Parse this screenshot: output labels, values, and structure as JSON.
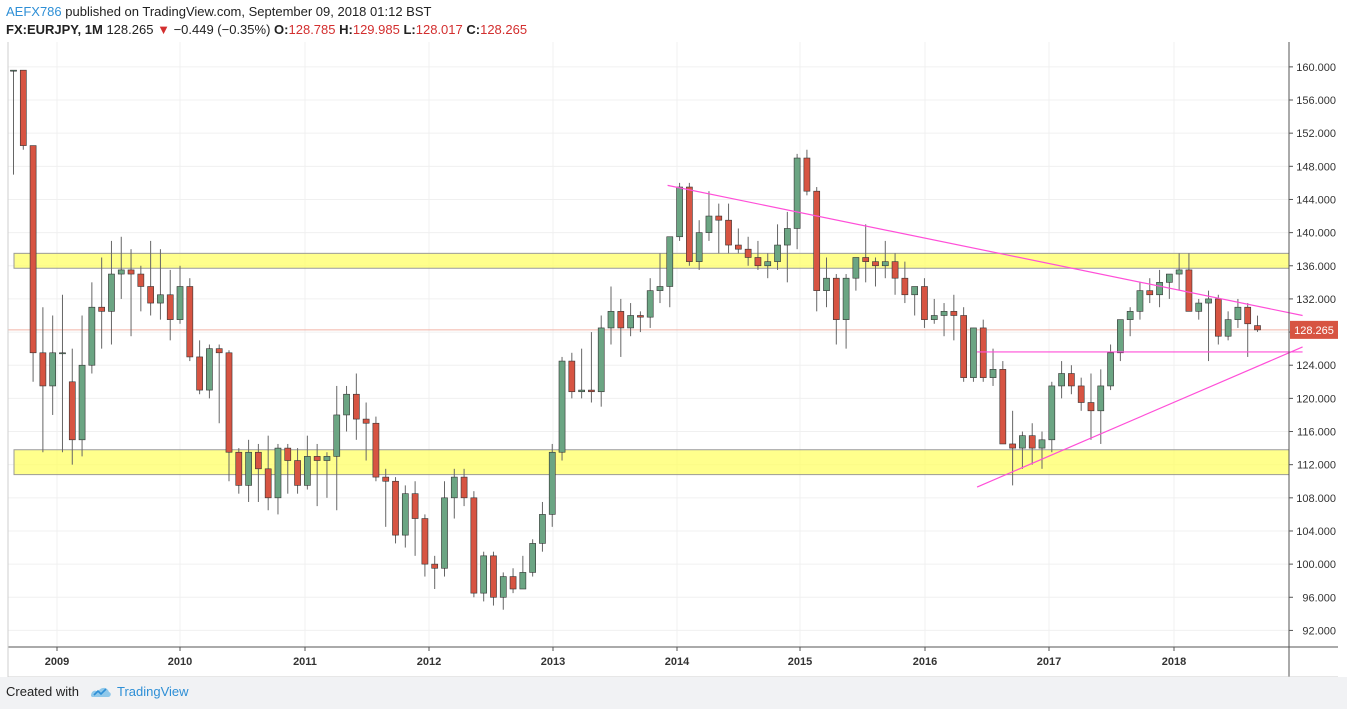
{
  "header": {
    "username": "AEFX786",
    "published_text": "published on TradingView.com, September 09, 2018 01:12 BST",
    "symbol": "FX:EURJPY, 1M",
    "last": "128.265",
    "change_arrow": "▼",
    "change": "−0.449 (−0.35%)",
    "o_label": "O:",
    "o_val": "128.785",
    "h_label": "H:",
    "h_val": "129.985",
    "l_label": "L:",
    "l_val": "128.017",
    "c_label": "C:",
    "c_val": "128.265"
  },
  "footer": {
    "created_with": "Created with",
    "brand": "TradingView"
  },
  "colors": {
    "up": "#6ba583",
    "down": "#d75442",
    "wick": "#666666",
    "zone_fill": "#ffff66",
    "trendline": "#ff4fd8",
    "last_price": "#d75442"
  },
  "chart_data": {
    "type": "candlestick",
    "symbol": "FX:EURJPY",
    "interval": "1M",
    "ylim": [
      90.0,
      163.0
    ],
    "y_ticks": [
      "92.000",
      "96.000",
      "100.000",
      "104.000",
      "108.000",
      "112.000",
      "116.000",
      "120.000",
      "124.000",
      "128.000",
      "132.000",
      "136.000",
      "140.000",
      "144.000",
      "148.000",
      "152.000",
      "156.000",
      "160.000"
    ],
    "x_ticks": [
      {
        "label": "2009",
        "date": "2009-01"
      },
      {
        "label": "2010",
        "date": "2010-01"
      },
      {
        "label": "2011",
        "date": "2011-01"
      },
      {
        "label": "2012",
        "date": "2012-01"
      },
      {
        "label": "2013",
        "date": "2013-01"
      },
      {
        "label": "2014",
        "date": "2014-01"
      },
      {
        "label": "2015",
        "date": "2015-01"
      },
      {
        "label": "2016",
        "date": "2016-01"
      },
      {
        "label": "2017",
        "date": "2017-01"
      },
      {
        "label": "2018",
        "date": "2018-01"
      }
    ],
    "last_price": 128.265,
    "last_price_label": "128.265",
    "zones": [
      {
        "from": 135.7,
        "to": 137.5
      },
      {
        "from": 110.8,
        "to": 113.8
      }
    ],
    "trendlines": [
      {
        "from": {
          "date": "2013-12",
          "price": 145.7
        },
        "to": {
          "date": "2018-12",
          "price": 130.0
        }
      },
      {
        "from": {
          "date": "2016-06",
          "price": 109.3
        },
        "to": {
          "date": "2018-12",
          "price": 126.2
        }
      },
      {
        "from": {
          "date": "2016-06",
          "price": 125.6
        },
        "to": {
          "date": "2018-12",
          "price": 125.6
        }
      }
    ],
    "candles": [
      {
        "d": "2008-09",
        "o": 159.6,
        "h": 159.6,
        "l": 147.0,
        "c": 159.6
      },
      {
        "d": "2008-10",
        "o": 159.6,
        "h": 159.6,
        "l": 150.0,
        "c": 150.5
      },
      {
        "d": "2008-10b",
        "o": 150.5,
        "h": 150.5,
        "l": 122.0,
        "c": 125.5
      },
      {
        "d": "2008-11",
        "o": 125.5,
        "h": 131.0,
        "l": 113.5,
        "c": 121.5
      },
      {
        "d": "2008-12",
        "o": 121.5,
        "h": 130.0,
        "l": 118.0,
        "c": 125.5
      },
      {
        "d": "2009-01",
        "o": 125.5,
        "h": 132.5,
        "l": 113.5,
        "c": 125.5
      },
      {
        "d": "2009-02",
        "o": 122.0,
        "h": 126.0,
        "l": 112.0,
        "c": 115.0
      },
      {
        "d": "2009-03",
        "o": 115.0,
        "h": 130.0,
        "l": 113.0,
        "c": 124.0
      },
      {
        "d": "2009-04",
        "o": 124.0,
        "h": 134.0,
        "l": 123.0,
        "c": 131.0
      },
      {
        "d": "2009-05",
        "o": 131.0,
        "h": 137.0,
        "l": 126.0,
        "c": 130.5
      },
      {
        "d": "2009-06",
        "o": 130.5,
        "h": 139.0,
        "l": 126.5,
        "c": 135.0
      },
      {
        "d": "2009-07",
        "o": 135.0,
        "h": 139.5,
        "l": 132.0,
        "c": 135.5
      },
      {
        "d": "2009-08",
        "o": 135.5,
        "h": 138.0,
        "l": 127.5,
        "c": 135.0
      },
      {
        "d": "2009-09",
        "o": 135.0,
        "h": 136.0,
        "l": 130.5,
        "c": 133.5
      },
      {
        "d": "2009-10",
        "o": 133.5,
        "h": 139.0,
        "l": 130.0,
        "c": 131.5
      },
      {
        "d": "2009-11",
        "o": 131.5,
        "h": 138.0,
        "l": 129.5,
        "c": 132.5
      },
      {
        "d": "2009-12",
        "o": 132.5,
        "h": 135.5,
        "l": 127.0,
        "c": 129.5
      },
      {
        "d": "2010-01",
        "o": 129.5,
        "h": 136.0,
        "l": 129.0,
        "c": 133.5
      },
      {
        "d": "2010-02",
        "o": 133.5,
        "h": 134.5,
        "l": 124.5,
        "c": 125.0
      },
      {
        "d": "2010-03",
        "o": 125.0,
        "h": 127.0,
        "l": 120.5,
        "c": 121.0
      },
      {
        "d": "2010-04",
        "o": 121.0,
        "h": 126.5,
        "l": 120.0,
        "c": 126.0
      },
      {
        "d": "2010-05",
        "o": 126.0,
        "h": 126.5,
        "l": 117.0,
        "c": 125.5
      },
      {
        "d": "2010-06",
        "o": 125.5,
        "h": 125.8,
        "l": 110.0,
        "c": 113.5
      },
      {
        "d": "2010-07",
        "o": 113.5,
        "h": 114.0,
        "l": 108.5,
        "c": 109.5
      },
      {
        "d": "2010-08",
        "o": 109.5,
        "h": 115.0,
        "l": 107.5,
        "c": 113.5
      },
      {
        "d": "2010-09",
        "o": 113.5,
        "h": 114.5,
        "l": 107.5,
        "c": 111.5
      },
      {
        "d": "2010-10",
        "o": 111.5,
        "h": 115.5,
        "l": 106.5,
        "c": 108.0
      },
      {
        "d": "2010-11",
        "o": 108.0,
        "h": 114.5,
        "l": 106.0,
        "c": 114.0
      },
      {
        "d": "2010-12",
        "o": 114.0,
        "h": 114.5,
        "l": 108.5,
        "c": 112.5
      },
      {
        "d": "2011-01",
        "o": 112.5,
        "h": 114.0,
        "l": 108.5,
        "c": 109.5
      },
      {
        "d": "2011-02",
        "o": 109.5,
        "h": 115.5,
        "l": 109.0,
        "c": 113.0
      },
      {
        "d": "2011-03",
        "o": 113.0,
        "h": 114.5,
        "l": 107.0,
        "c": 112.5
      },
      {
        "d": "2011-04",
        "o": 112.5,
        "h": 113.5,
        "l": 108.0,
        "c": 113.0
      },
      {
        "d": "2011-05",
        "o": 113.0,
        "h": 121.5,
        "l": 106.5,
        "c": 118.0
      },
      {
        "d": "2011-06",
        "o": 118.0,
        "h": 121.5,
        "l": 116.0,
        "c": 120.5
      },
      {
        "d": "2011-07",
        "o": 120.5,
        "h": 123.0,
        "l": 115.0,
        "c": 117.5
      },
      {
        "d": "2011-08",
        "o": 117.5,
        "h": 119.5,
        "l": 112.5,
        "c": 117.0
      },
      {
        "d": "2011-09",
        "o": 117.0,
        "h": 117.8,
        "l": 110.0,
        "c": 110.5
      },
      {
        "d": "2011-10",
        "o": 110.5,
        "h": 111.5,
        "l": 104.5,
        "c": 110.0
      },
      {
        "d": "2011-11",
        "o": 110.0,
        "h": 110.5,
        "l": 102.5,
        "c": 103.5
      },
      {
        "d": "2011-12",
        "o": 103.5,
        "h": 109.5,
        "l": 102.0,
        "c": 108.5
      },
      {
        "d": "2012-01",
        "o": 108.5,
        "h": 110.0,
        "l": 101.0,
        "c": 105.5
      },
      {
        "d": "2012-02",
        "o": 105.5,
        "h": 106.0,
        "l": 98.5,
        "c": 100.0
      },
      {
        "d": "2012-03",
        "o": 100.0,
        "h": 101.0,
        "l": 97.0,
        "c": 99.5
      },
      {
        "d": "2012-04",
        "o": 99.5,
        "h": 110.0,
        "l": 98.5,
        "c": 108.0
      },
      {
        "d": "2012-05",
        "o": 108.0,
        "h": 111.5,
        "l": 105.5,
        "c": 110.5
      },
      {
        "d": "2012-06",
        "o": 110.5,
        "h": 111.5,
        "l": 107.0,
        "c": 108.0
      },
      {
        "d": "2012-07",
        "o": 108.0,
        "h": 108.8,
        "l": 96.0,
        "c": 96.5
      },
      {
        "d": "2012-08",
        "o": 96.5,
        "h": 101.5,
        "l": 95.5,
        "c": 101.0
      },
      {
        "d": "2012-09",
        "o": 101.0,
        "h": 101.5,
        "l": 95.0,
        "c": 96.0
      },
      {
        "d": "2012-10",
        "o": 96.0,
        "h": 99.0,
        "l": 94.5,
        "c": 98.5
      },
      {
        "d": "2012-11",
        "o": 98.5,
        "h": 99.5,
        "l": 96.5,
        "c": 97.0
      },
      {
        "d": "2012-12",
        "o": 97.0,
        "h": 101.0,
        "l": 97.0,
        "c": 99.0
      },
      {
        "d": "2013-01",
        "o": 99.0,
        "h": 103.0,
        "l": 98.5,
        "c": 102.5
      },
      {
        "d": "2013-02",
        "o": 102.5,
        "h": 107.5,
        "l": 101.5,
        "c": 106.0
      },
      {
        "d": "2013-03",
        "o": 106.0,
        "h": 114.5,
        "l": 104.5,
        "c": 113.5
      },
      {
        "d": "2013-04",
        "o": 113.5,
        "h": 125.0,
        "l": 112.5,
        "c": 124.5
      },
      {
        "d": "2013-05",
        "o": 124.5,
        "h": 125.5,
        "l": 120.0,
        "c": 120.8
      },
      {
        "d": "2013-06",
        "o": 120.8,
        "h": 126.0,
        "l": 120.0,
        "c": 121.0
      },
      {
        "d": "2013-07",
        "o": 121.0,
        "h": 128.0,
        "l": 119.5,
        "c": 120.8
      },
      {
        "d": "2013-08",
        "o": 120.8,
        "h": 130.0,
        "l": 119.0,
        "c": 128.5
      },
      {
        "d": "2013-09",
        "o": 128.5,
        "h": 133.5,
        "l": 126.5,
        "c": 130.5
      },
      {
        "d": "2013-10",
        "o": 130.5,
        "h": 132.0,
        "l": 125.0,
        "c": 128.5
      },
      {
        "d": "2013-11",
        "o": 128.5,
        "h": 131.5,
        "l": 127.5,
        "c": 130.0
      },
      {
        "d": "2013-12",
        "o": 130.0,
        "h": 130.5,
        "l": 128.0,
        "c": 129.8
      },
      {
        "d": "2014-01",
        "o": 129.8,
        "h": 134.5,
        "l": 128.5,
        "c": 133.0
      },
      {
        "d": "2014-02",
        "o": 133.0,
        "h": 137.5,
        "l": 131.5,
        "c": 133.5
      },
      {
        "d": "2014-03",
        "o": 133.5,
        "h": 139.0,
        "l": 131.0,
        "c": 139.5
      },
      {
        "d": "2014-04",
        "o": 139.5,
        "h": 146.0,
        "l": 139.0,
        "c": 145.5
      },
      {
        "d": "2014-05",
        "o": 145.5,
        "h": 146.0,
        "l": 136.0,
        "c": 136.5
      },
      {
        "d": "2014-06",
        "o": 136.5,
        "h": 141.5,
        "l": 135.5,
        "c": 140.0
      },
      {
        "d": "2014-07",
        "o": 140.0,
        "h": 145.0,
        "l": 139.0,
        "c": 142.0
      },
      {
        "d": "2014-08",
        "o": 142.0,
        "h": 143.5,
        "l": 137.5,
        "c": 141.5
      },
      {
        "d": "2014-09",
        "o": 141.5,
        "h": 143.5,
        "l": 137.5,
        "c": 138.5
      },
      {
        "d": "2014-10",
        "o": 138.5,
        "h": 140.5,
        "l": 137.5,
        "c": 138.0
      },
      {
        "d": "2014-11",
        "o": 138.0,
        "h": 139.5,
        "l": 136.0,
        "c": 137.0
      },
      {
        "d": "2014-12",
        "o": 137.0,
        "h": 139.0,
        "l": 135.5,
        "c": 136.0
      },
      {
        "d": "2015-01",
        "o": 136.0,
        "h": 137.5,
        "l": 134.5,
        "c": 136.5
      },
      {
        "d": "2015-02",
        "o": 136.5,
        "h": 141.0,
        "l": 135.5,
        "c": 138.5
      },
      {
        "d": "2015-03",
        "o": 138.5,
        "h": 142.5,
        "l": 134.0,
        "c": 140.5
      },
      {
        "d": "2015-04",
        "o": 140.5,
        "h": 149.5,
        "l": 138.0,
        "c": 149.0
      },
      {
        "d": "2015-05",
        "o": 149.0,
        "h": 150.0,
        "l": 144.5,
        "c": 145.0
      },
      {
        "d": "2015-06",
        "o": 145.0,
        "h": 145.5,
        "l": 130.5,
        "c": 133.0
      },
      {
        "d": "2015-07",
        "o": 133.0,
        "h": 137.0,
        "l": 131.0,
        "c": 134.5
      },
      {
        "d": "2015-08",
        "o": 134.5,
        "h": 135.0,
        "l": 126.5,
        "c": 129.5
      },
      {
        "d": "2015-09",
        "o": 129.5,
        "h": 135.0,
        "l": 126.0,
        "c": 134.5
      },
      {
        "d": "2015-10",
        "o": 134.5,
        "h": 137.0,
        "l": 133.0,
        "c": 137.0
      },
      {
        "d": "2015-11",
        "o": 137.0,
        "h": 141.0,
        "l": 134.0,
        "c": 136.5
      },
      {
        "d": "2015-12",
        "o": 136.5,
        "h": 137.0,
        "l": 133.5,
        "c": 136.0
      },
      {
        "d": "2016-01",
        "o": 136.0,
        "h": 139.0,
        "l": 134.5,
        "c": 136.5
      },
      {
        "d": "2016-02",
        "o": 136.5,
        "h": 137.5,
        "l": 132.5,
        "c": 134.5
      },
      {
        "d": "2016-03",
        "o": 134.5,
        "h": 136.5,
        "l": 131.5,
        "c": 132.5
      },
      {
        "d": "2016-04",
        "o": 132.5,
        "h": 133.5,
        "l": 130.0,
        "c": 133.5
      },
      {
        "d": "2016-05",
        "o": 133.5,
        "h": 134.5,
        "l": 128.5,
        "c": 129.5
      },
      {
        "d": "2016-06",
        "o": 129.5,
        "h": 132.0,
        "l": 129.0,
        "c": 130.0
      },
      {
        "d": "2016-07",
        "o": 130.0,
        "h": 131.5,
        "l": 127.5,
        "c": 130.5
      },
      {
        "d": "2016-08",
        "o": 130.5,
        "h": 132.5,
        "l": 127.0,
        "c": 130.0
      },
      {
        "d": "2016-09",
        "o": 130.0,
        "h": 131.0,
        "l": 122.0,
        "c": 122.5
      },
      {
        "d": "2016-10",
        "o": 122.5,
        "h": 128.5,
        "l": 122.0,
        "c": 128.5
      },
      {
        "d": "2016-11",
        "o": 128.5,
        "h": 129.5,
        "l": 122.0,
        "c": 122.5
      },
      {
        "d": "2016-12",
        "o": 122.5,
        "h": 126.0,
        "l": 121.5,
        "c": 123.5
      },
      {
        "d": "2017-01",
        "o": 123.5,
        "h": 124.5,
        "l": 114.5,
        "c": 114.5
      },
      {
        "d": "2017-02",
        "o": 114.5,
        "h": 118.5,
        "l": 109.5,
        "c": 114.0
      },
      {
        "d": "2017-03",
        "o": 114.0,
        "h": 116.0,
        "l": 111.5,
        "c": 115.5
      },
      {
        "d": "2017-04",
        "o": 115.5,
        "h": 117.0,
        "l": 112.0,
        "c": 114.0
      },
      {
        "d": "2017-05",
        "o": 114.0,
        "h": 116.0,
        "l": 111.5,
        "c": 115.0
      },
      {
        "d": "2017-06",
        "o": 115.0,
        "h": 122.0,
        "l": 113.5,
        "c": 121.5
      },
      {
        "d": "2017-07",
        "o": 121.5,
        "h": 124.5,
        "l": 120.0,
        "c": 123.0
      },
      {
        "d": "2017-08",
        "o": 123.0,
        "h": 124.0,
        "l": 120.5,
        "c": 121.5
      },
      {
        "d": "2017-09",
        "o": 121.5,
        "h": 122.5,
        "l": 118.5,
        "c": 119.5
      },
      {
        "d": "2017-10",
        "o": 119.5,
        "h": 123.0,
        "l": 115.0,
        "c": 118.5
      },
      {
        "d": "2017-11",
        "o": 118.5,
        "h": 123.5,
        "l": 114.5,
        "c": 121.5
      },
      {
        "d": "2017-12",
        "o": 121.5,
        "h": 126.5,
        "l": 121.0,
        "c": 125.5
      },
      {
        "d": "2018-01",
        "o": 125.5,
        "h": 129.5,
        "l": 124.5,
        "c": 129.5
      },
      {
        "d": "2018-02",
        "o": 129.5,
        "h": 131.0,
        "l": 127.5,
        "c": 130.5
      },
      {
        "d": "2018-03",
        "o": 130.5,
        "h": 134.0,
        "l": 129.5,
        "c": 133.0
      },
      {
        "d": "2018-04",
        "o": 133.0,
        "h": 134.5,
        "l": 131.5,
        "c": 132.5
      },
      {
        "d": "2018-05",
        "o": 132.5,
        "h": 135.5,
        "l": 131.0,
        "c": 134.0
      },
      {
        "d": "2018-06",
        "o": 134.0,
        "h": 135.0,
        "l": 132.0,
        "c": 135.0
      },
      {
        "d": "2018-07",
        "o": 135.0,
        "h": 137.5,
        "l": 133.0,
        "c": 135.5
      },
      {
        "d": "2018-08",
        "o": 135.5,
        "h": 137.5,
        "l": 131.0,
        "c": 130.5
      },
      {
        "d": "2018-09",
        "o": 130.5,
        "h": 132.0,
        "l": 129.5,
        "c": 131.5
      },
      {
        "d": "2018-10",
        "o": 131.5,
        "h": 133.0,
        "l": 124.5,
        "c": 132.0
      },
      {
        "d": "2018-11",
        "o": 132.0,
        "h": 132.5,
        "l": 126.5,
        "c": 127.5
      },
      {
        "d": "2018-12",
        "o": 127.5,
        "h": 130.5,
        "l": 127.0,
        "c": 129.5
      },
      {
        "d": "2019-01",
        "o": 129.5,
        "h": 132.0,
        "l": 128.5,
        "c": 131.0
      },
      {
        "d": "2019-02",
        "o": 131.0,
        "h": 131.5,
        "l": 125.0,
        "c": 129.0
      },
      {
        "d": "2019-03",
        "o": 128.785,
        "h": 129.985,
        "l": 128.017,
        "c": 128.265
      }
    ]
  }
}
